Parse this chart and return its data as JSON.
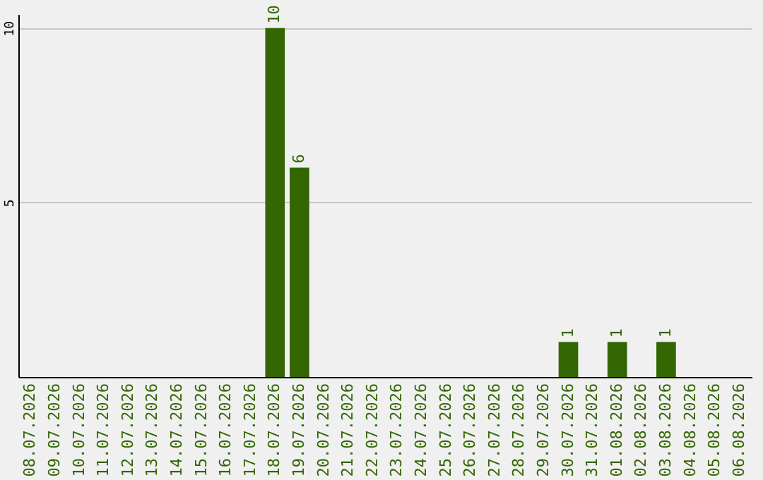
{
  "chart_data": {
    "type": "bar",
    "categories": [
      "08.07.2026",
      "09.07.2026",
      "10.07.2026",
      "11.07.2026",
      "12.07.2026",
      "13.07.2026",
      "14.07.2026",
      "15.07.2026",
      "16.07.2026",
      "17.07.2026",
      "18.07.2026",
      "19.07.2026",
      "20.07.2026",
      "21.07.2026",
      "22.07.2026",
      "23.07.2026",
      "24.07.2026",
      "25.07.2026",
      "26.07.2026",
      "27.07.2026",
      "28.07.2026",
      "29.07.2026",
      "30.07.2026",
      "31.07.2026",
      "01.08.2026",
      "02.08.2026",
      "03.08.2026",
      "04.08.2026",
      "05.08.2026",
      "06.08.2026"
    ],
    "values": [
      0,
      0,
      0,
      0,
      0,
      0,
      0,
      0,
      0,
      0,
      10,
      6,
      0,
      0,
      0,
      0,
      0,
      0,
      0,
      0,
      0,
      0,
      1,
      0,
      1,
      0,
      1,
      0,
      0,
      0
    ],
    "value_labels": [
      null,
      null,
      null,
      null,
      null,
      null,
      null,
      null,
      null,
      null,
      "10",
      "6",
      null,
      null,
      null,
      null,
      null,
      null,
      null,
      null,
      null,
      null,
      "1",
      null,
      "1",
      null,
      "1",
      null,
      null,
      null
    ],
    "color": "#336600",
    "ylim": [
      0,
      10.4
    ],
    "yticks": [
      5,
      10
    ],
    "grid": "y"
  }
}
